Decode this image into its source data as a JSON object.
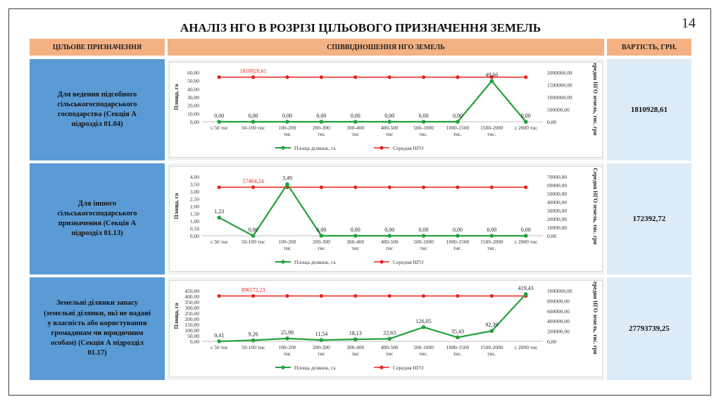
{
  "slide_number": "14",
  "title": "АНАЛІЗ НГО В РОЗРІЗІ ЦІЛЬОВОГО ПРИЗНАЧЕННЯ ЗЕМЕЛЬ",
  "headers": {
    "purpose": "Цільове призначення",
    "ratio": "Співвідношення НГО земель",
    "cost": "Вартість, грн."
  },
  "rows": [
    {
      "label": "Для ведення підсобного сільськогосподарського господарства (Секція А підрозділ 01.04)",
      "value": "1810928,61"
    },
    {
      "label": "Для іншого сільськогосподарського призначення (Секція А підрозділ 01.13)",
      "value": "172392,72"
    },
    {
      "label": "Земельні ділянки запасу (земельні ділянки, які не надані у власність або користування громадянам чи юридичним особам) (Секція А підрозділ 01.17)",
      "value": "27793739,25"
    }
  ],
  "colors": {
    "area": "#22a13a",
    "ngo": "#e8231f",
    "header": "#f4b183",
    "label_bg": "#5b9bd5",
    "value_bg": "#ddebf7"
  },
  "chart_data": [
    {
      "type": "line",
      "categories": [
        "≤ 50 тис",
        "50-100 тис",
        "100-200 тис",
        "200-300 тис",
        "300-400 тис",
        "400-500 тис",
        "500-1000 тис.",
        "1000-1500 тис.",
        "1500-2000 тис.",
        "≥ 2000 тис"
      ],
      "ylabel": "Площа, га",
      "y2label": "Середня НГО земель, тис. грн",
      "ylim": [
        0,
        60
      ],
      "yticks": [
        "60,00",
        "50,00",
        "40,00",
        "30,00",
        "20,00",
        "10,00",
        "0,00"
      ],
      "y2lim": [
        0,
        2000000
      ],
      "y2ticks": [
        "2000000,00",
        "1500000,00",
        "1000000,00",
        "500000,00",
        "0,00"
      ],
      "legend": "bottom",
      "series": [
        {
          "name": "Площа ділянок, га",
          "axis": "left",
          "values": [
            0,
            0,
            0,
            0,
            0,
            0,
            0,
            0,
            49.6,
            0
          ],
          "labels": [
            "0,00",
            "0,00",
            "0,00",
            "0,00",
            "0,00",
            "0,00",
            "0,00",
            "0,00",
            "49,60",
            "0,00"
          ]
        },
        {
          "name": "Середня НГО",
          "axis": "right",
          "value": 1810928.61,
          "label": "1810928,61"
        }
      ]
    },
    {
      "type": "line",
      "categories": [
        "≤ 50 тис",
        "50-100 тис",
        "100-200 тис",
        "200-300 тис",
        "300-400 тис",
        "400-500 тис",
        "500-1000 тис",
        "1000-1500 тис.",
        "1500-2000 тис.",
        "≥ 2000 тис"
      ],
      "ylabel": "Площа, га",
      "y2label": "Середня НГО земель, тис. грн",
      "ylim": [
        0,
        4
      ],
      "yticks": [
        "4,00",
        "3,50",
        "3,00",
        "2,50",
        "2,00",
        "1,50",
        "1,00",
        "0,50",
        "0,00"
      ],
      "y2lim": [
        0,
        70000
      ],
      "y2ticks": [
        "70000,00",
        "60000,00",
        "50000,00",
        "40000,00",
        "30000,00",
        "20000,00",
        "10000,00",
        "0,00"
      ],
      "legend": "bottom",
      "series": [
        {
          "name": "Площа ділянок, га",
          "axis": "left",
          "values": [
            1.23,
            0,
            3.49,
            0,
            0,
            0,
            0,
            0,
            0,
            0
          ],
          "labels": [
            "1,23",
            "0,00",
            "3,49",
            "0,00",
            "0,00",
            "0,00",
            "0,00",
            "0,00",
            "0,00",
            "0,00"
          ]
        },
        {
          "name": "Середня НГО",
          "axis": "right",
          "value": 57464.24,
          "label": "57464,24"
        }
      ]
    },
    {
      "type": "line",
      "categories": [
        "≤ 50 тис",
        "50-100 тис",
        "100-200 тис",
        "200-300 тис",
        "300-400 тис",
        "400-500 тис",
        "500-1000 тис.",
        "1000-1500 тис.",
        "1500-2000 тис.",
        "≥ 2000 тис"
      ],
      "ylabel": "Площа, га",
      "y2label": "Середня НГО земель, тис. грн",
      "ylim": [
        0,
        450
      ],
      "yticks": [
        "450,00",
        "400,00",
        "350,00",
        "300,00",
        "250,00",
        "200,00",
        "150,00",
        "100,00",
        "50,00",
        "0,00"
      ],
      "y2lim": [
        0,
        1000000
      ],
      "y2ticks": [
        "1000000,00",
        "800000,00",
        "600000,00",
        "400000,00",
        "200000,00",
        "0,00"
      ],
      "legend": "bottom",
      "series": [
        {
          "name": "Площа ділянок, га",
          "axis": "left",
          "values": [
            0.41,
            9.26,
            25.98,
            11.54,
            18.13,
            22.63,
            126.05,
            35.43,
            92.39,
            419.43
          ],
          "labels": [
            "0,41",
            "9,26",
            "25,98",
            "11,54",
            "18,13",
            "22,63",
            "126,05",
            "35,43",
            "92,39",
            "419,43"
          ]
        },
        {
          "name": "Середня НГО",
          "axis": "right",
          "value": 896572.23,
          "label": "896572,23"
        }
      ]
    }
  ]
}
